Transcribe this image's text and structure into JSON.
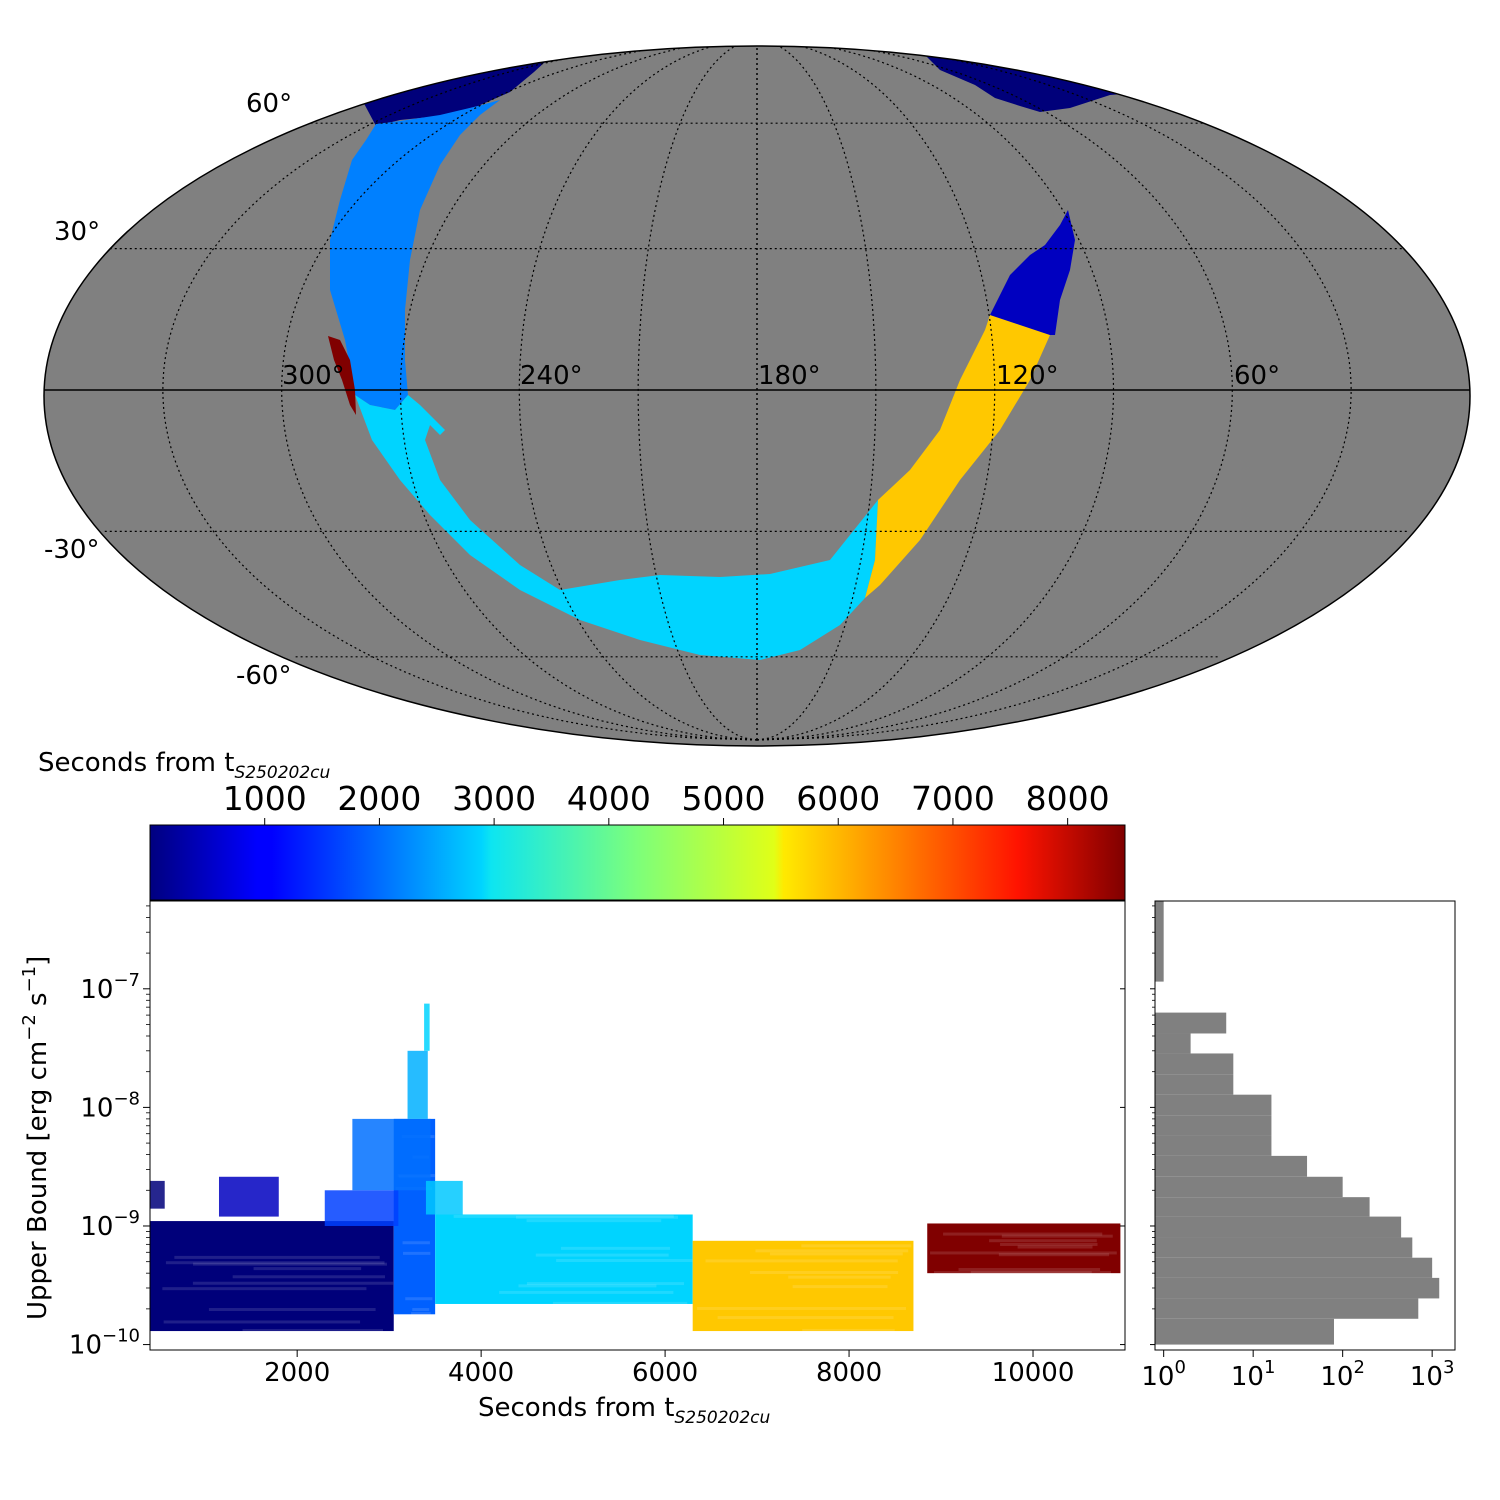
{
  "colors": {
    "background": "#808080",
    "histogram": "#808080"
  },
  "chart_data": [
    {
      "type": "skymap",
      "projection": "mollweide",
      "grid": true,
      "lat_labels": [
        "60°",
        "30°",
        "-30°",
        "-60°"
      ],
      "lon_labels": [
        "300°",
        "240°",
        "180°",
        "120°",
        "60°"
      ],
      "regions": [
        {
          "time_s": 800,
          "color": "#00007a",
          "description": "top-left and top-right near the 60° parallel"
        },
        {
          "time_s": 2400,
          "color": "#0080ff",
          "description": "left arc, longitude ~270°"
        },
        {
          "time_s": 3400,
          "color": "#00d4ff",
          "description": "lower arc toward -60°"
        },
        {
          "time_s": 7400,
          "color": "#ffc800",
          "description": "right arc near longitude 120°"
        },
        {
          "time_s": 1200,
          "color": "#0000c0",
          "description": "top of the right arc"
        },
        {
          "time_s": 9000,
          "color": "#800000",
          "description": "thin strip near longitude 300°"
        }
      ]
    },
    {
      "type": "colorbar",
      "label_main": "Seconds from t",
      "label_sub": "S250202cu",
      "ticks": [
        "1000",
        "2000",
        "3000",
        "4000",
        "5000",
        "6000",
        "7000",
        "8000"
      ],
      "range": [
        0,
        8500
      ],
      "colormap": "jet"
    },
    {
      "type": "scatter",
      "xlabel_main": "Seconds from t",
      "xlabel_sub": "S250202cu",
      "ylabel_main": "Upper Bound [erg cm",
      "ylabel_sup1": "−2",
      "ylabel_mid": " s",
      "ylabel_sup2": "−1",
      "ylabel_end": "]",
      "xlim": [
        400,
        11000
      ],
      "ylim": [
        9e-11,
        5.5e-07
      ],
      "yscale": "log",
      "x_ticks": [
        "2000",
        "4000",
        "6000",
        "8000",
        "10000"
      ],
      "y_ticks": [
        {
          "base": "10",
          "exp": "−7"
        },
        {
          "base": "10",
          "exp": "−8"
        },
        {
          "base": "10",
          "exp": "−9"
        },
        {
          "base": "10",
          "exp": "−10"
        }
      ],
      "groups": [
        {
          "x": [
            400,
            3050
          ],
          "y": [
            1.3e-10,
            1.1e-09
          ],
          "color": "#00007a"
        },
        {
          "x": [
            3050,
            3500
          ],
          "y": [
            1.8e-10,
            8e-09
          ],
          "color": "#0060ff"
        },
        {
          "x": [
            3500,
            6300
          ],
          "y": [
            2.2e-10,
            1.25e-09
          ],
          "color": "#00d4ff"
        },
        {
          "x": [
            6300,
            8700
          ],
          "y": [
            1.3e-10,
            7.5e-10
          ],
          "color": "#ffc800"
        },
        {
          "x": [
            8850,
            10950
          ],
          "y": [
            4e-10,
            1.05e-09
          ],
          "color": "#800000"
        }
      ]
    },
    {
      "type": "histogram",
      "orientation": "horizontal",
      "xscale": "log",
      "xlim": [
        0.8,
        1800
      ],
      "x_ticks": [
        {
          "base": "10",
          "exp": "0"
        },
        {
          "base": "10",
          "exp": "1"
        },
        {
          "base": "10",
          "exp": "2"
        },
        {
          "base": "10",
          "exp": "3"
        }
      ],
      "bins": [
        {
          "y": [
            1e-10,
            1.65e-10
          ],
          "count": 80
        },
        {
          "y": [
            1.65e-10,
            2.45e-10
          ],
          "count": 700
        },
        {
          "y": [
            2.45e-10,
            3.65e-10
          ],
          "count": 1200
        },
        {
          "y": [
            3.65e-10,
            5.4e-10
          ],
          "count": 1000
        },
        {
          "y": [
            5.4e-10,
            8e-10
          ],
          "count": 600
        },
        {
          "y": [
            8e-10,
            1.2e-09
          ],
          "count": 450
        },
        {
          "y": [
            1.2e-09,
            1.75e-09
          ],
          "count": 200
        },
        {
          "y": [
            1.75e-09,
            2.6e-09
          ],
          "count": 100
        },
        {
          "y": [
            2.6e-09,
            3.9e-09
          ],
          "count": 40
        },
        {
          "y": [
            3.9e-09,
            5.8e-09
          ],
          "count": 16
        },
        {
          "y": [
            5.8e-09,
            8.6e-09
          ],
          "count": 16
        },
        {
          "y": [
            8.6e-09,
            1.28e-08
          ],
          "count": 16
        },
        {
          "y": [
            1.28e-08,
            1.9e-08
          ],
          "count": 6
        },
        {
          "y": [
            1.9e-08,
            2.85e-08
          ],
          "count": 6
        },
        {
          "y": [
            2.85e-08,
            4.2e-08
          ],
          "count": 2
        },
        {
          "y": [
            4.2e-08,
            6.3e-08
          ],
          "count": 5
        },
        {
          "y": [
            1.15e-07,
            5.5e-07
          ],
          "count": 1
        }
      ]
    }
  ]
}
